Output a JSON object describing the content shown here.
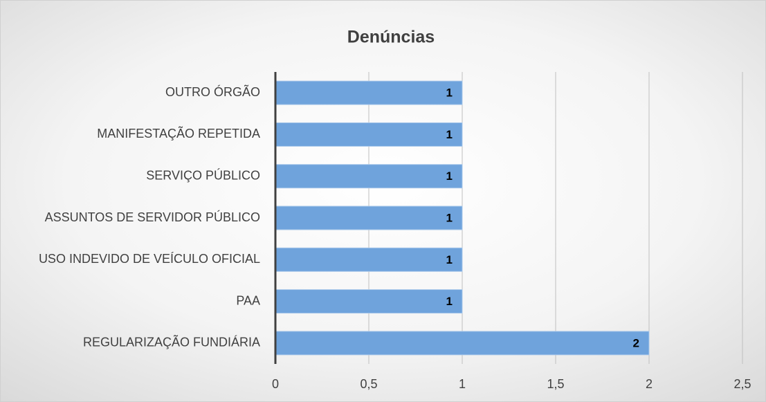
{
  "chart_data": {
    "type": "bar",
    "orientation": "horizontal",
    "title": "Denúncias",
    "categories": [
      "OUTRO ÓRGÃO",
      "MANIFESTAÇÃO REPETIDA",
      "SERVIÇO PÚBLICO",
      "ASSUNTOS DE SERVIDOR PÚBLICO",
      "USO INDEVIDO DE VEÍCULO OFICIAL",
      "PAA",
      "REGULARIZAÇÃO FUNDIÁRIA"
    ],
    "values": [
      1,
      1,
      1,
      1,
      1,
      1,
      2
    ],
    "color": "#6fa3dc",
    "xlim": [
      0,
      2.5
    ],
    "xticks": [
      0,
      {
        "value": 0.5,
        "label": "0,5"
      },
      1,
      {
        "value": 1.5,
        "label": "1,5"
      },
      2,
      {
        "value": 2.5,
        "label": "2,5"
      }
    ],
    "grid": true
  }
}
